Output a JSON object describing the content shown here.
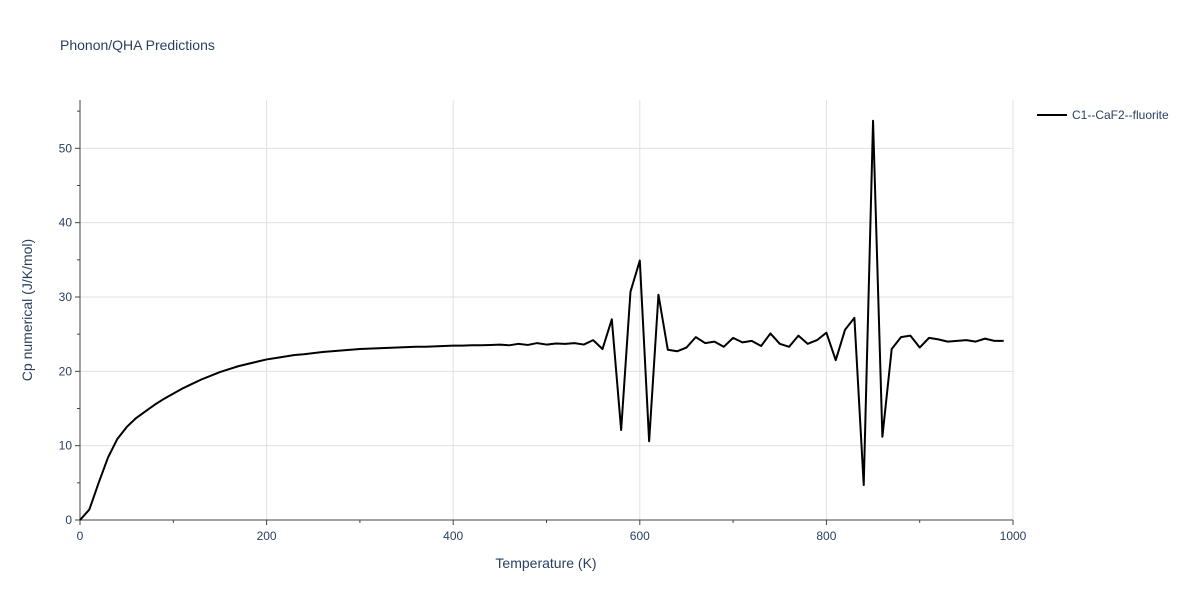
{
  "chart_data": {
    "type": "line",
    "title": "Phonon/QHA Predictions",
    "xlabel": "Temperature (K)",
    "ylabel": "Cp numerical (J/K/mol)",
    "xlim": [
      0,
      1000
    ],
    "ylim": [
      0,
      56.5
    ],
    "xticks": [
      0,
      200,
      400,
      600,
      800,
      1000
    ],
    "yticks": [
      0,
      10,
      20,
      30,
      40,
      50
    ],
    "grid": true,
    "legend_position": "top-right",
    "series": [
      {
        "name": "C1--CaF2--fluorite",
        "color": "#000000",
        "x": [
          0,
          10,
          20,
          30,
          40,
          50,
          60,
          70,
          80,
          90,
          100,
          110,
          120,
          130,
          140,
          150,
          160,
          170,
          180,
          190,
          200,
          210,
          220,
          230,
          240,
          250,
          260,
          270,
          280,
          290,
          300,
          310,
          320,
          330,
          340,
          350,
          360,
          370,
          380,
          390,
          400,
          410,
          420,
          430,
          440,
          450,
          460,
          470,
          480,
          490,
          500,
          510,
          520,
          530,
          540,
          550,
          560,
          570,
          580,
          590,
          600,
          610,
          620,
          630,
          640,
          650,
          660,
          670,
          680,
          690,
          700,
          710,
          720,
          730,
          740,
          750,
          760,
          770,
          780,
          790,
          800,
          810,
          820,
          830,
          840,
          850,
          860,
          870,
          880,
          890,
          900,
          910,
          920,
          930,
          940,
          950,
          960,
          970,
          980,
          990
        ],
        "y": [
          0,
          1.4,
          5.0,
          8.4,
          10.9,
          12.5,
          13.7,
          14.6,
          15.5,
          16.3,
          17.0,
          17.7,
          18.3,
          18.9,
          19.4,
          19.9,
          20.3,
          20.7,
          21.0,
          21.3,
          21.6,
          21.8,
          22.0,
          22.2,
          22.3,
          22.45,
          22.6,
          22.7,
          22.8,
          22.9,
          23.0,
          23.05,
          23.1,
          23.15,
          23.2,
          23.25,
          23.3,
          23.3,
          23.35,
          23.4,
          23.45,
          23.45,
          23.5,
          23.5,
          23.55,
          23.6,
          23.5,
          23.7,
          23.55,
          23.8,
          23.6,
          23.75,
          23.7,
          23.8,
          23.6,
          24.2,
          23.0,
          27.0,
          12.1,
          30.7,
          34.9,
          10.6,
          30.3,
          22.9,
          22.7,
          23.2,
          24.6,
          23.8,
          24.0,
          23.3,
          24.5,
          23.9,
          24.1,
          23.4,
          25.1,
          23.7,
          23.3,
          24.8,
          23.7,
          24.2,
          25.2,
          21.5,
          25.6,
          27.2,
          4.7,
          53.7,
          11.2,
          23.0,
          24.6,
          24.8,
          23.2,
          24.5,
          24.3,
          24.0,
          24.1,
          24.2,
          24.0,
          24.4,
          24.1,
          24.1
        ]
      }
    ]
  }
}
